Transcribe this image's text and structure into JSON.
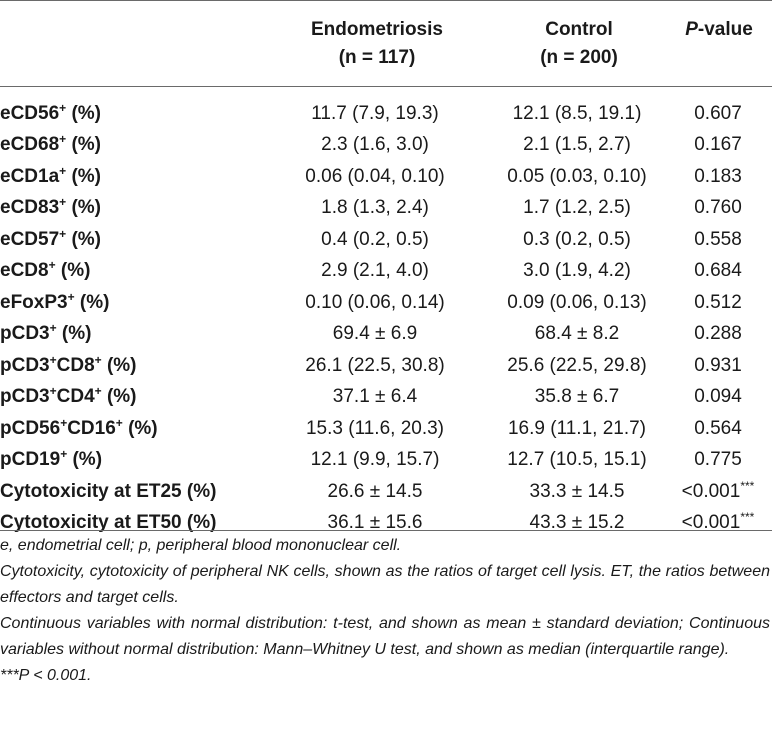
{
  "header": {
    "endometriosis": "Endometriosis",
    "endometriosis_n": "(n = 117)",
    "control": "Control",
    "control_n": "(n = 200)",
    "pvalue_italic": "P",
    "pvalue_rest": "-value"
  },
  "rows": [
    {
      "pre": "eCD56",
      "s1": "+",
      "mid": "",
      "s2": "",
      "post": " (%)",
      "endo": "11.7 (7.9, 19.3)",
      "ctrl": "12.1 (8.5, 19.1)",
      "p": "0.607",
      "p_sup": ""
    },
    {
      "pre": "eCD68",
      "s1": "+",
      "mid": "",
      "s2": "",
      "post": " (%)",
      "endo": "2.3 (1.6, 3.0)",
      "ctrl": "2.1 (1.5, 2.7)",
      "p": "0.167",
      "p_sup": ""
    },
    {
      "pre": "eCD1a",
      "s1": "+",
      "mid": "",
      "s2": "",
      "post": " (%)",
      "endo": "0.06 (0.04, 0.10)",
      "ctrl": "0.05 (0.03, 0.10)",
      "p": "0.183",
      "p_sup": ""
    },
    {
      "pre": "eCD83",
      "s1": "+",
      "mid": "",
      "s2": "",
      "post": " (%)",
      "endo": "1.8 (1.3, 2.4)",
      "ctrl": "1.7 (1.2, 2.5)",
      "p": "0.760",
      "p_sup": ""
    },
    {
      "pre": "eCD57",
      "s1": "+",
      "mid": "",
      "s2": "",
      "post": " (%)",
      "endo": "0.4 (0.2, 0.5)",
      "ctrl": "0.3 (0.2, 0.5)",
      "p": "0.558",
      "p_sup": ""
    },
    {
      "pre": "eCD8",
      "s1": "+",
      "mid": "",
      "s2": "",
      "post": " (%)",
      "endo": "2.9 (2.1, 4.0)",
      "ctrl": "3.0 (1.9, 4.2)",
      "p": "0.684",
      "p_sup": ""
    },
    {
      "pre": "eFoxP3",
      "s1": "+",
      "mid": "",
      "s2": "",
      "post": " (%)",
      "endo": "0.10 (0.06, 0.14)",
      "ctrl": "0.09 (0.06, 0.13)",
      "p": "0.512",
      "p_sup": ""
    },
    {
      "pre": "pCD3",
      "s1": "+",
      "mid": "",
      "s2": "",
      "post": " (%)",
      "endo": "69.4 ± 6.9",
      "ctrl": "68.4 ± 8.2",
      "p": "0.288",
      "p_sup": ""
    },
    {
      "pre": "pCD3",
      "s1": "+",
      "mid": "CD8",
      "s2": "+",
      "post": " (%)",
      "endo": "26.1 (22.5, 30.8)",
      "ctrl": "25.6 (22.5, 29.8)",
      "p": "0.931",
      "p_sup": ""
    },
    {
      "pre": "pCD3",
      "s1": "+",
      "mid": "CD4",
      "s2": "+",
      "post": " (%)",
      "endo": "37.1 ± 6.4",
      "ctrl": "35.8 ± 6.7",
      "p": "0.094",
      "p_sup": ""
    },
    {
      "pre": "pCD56",
      "s1": "+",
      "mid": "CD16",
      "s2": "+",
      "post": " (%)",
      "endo": "15.3 (11.6, 20.3)",
      "ctrl": "16.9 (11.1, 21.7)",
      "p": "0.564",
      "p_sup": ""
    },
    {
      "pre": "pCD19",
      "s1": "+",
      "mid": "",
      "s2": "",
      "post": " (%)",
      "endo": "12.1 (9.9, 15.7)",
      "ctrl": "12.7 (10.5, 15.1)",
      "p": "0.775",
      "p_sup": ""
    },
    {
      "pre": "Cytotoxicity at ET25 (%)",
      "s1": "",
      "mid": "",
      "s2": "",
      "post": "",
      "endo": "26.6 ± 14.5",
      "ctrl": "33.3 ± 14.5",
      "p": "<0.001",
      "p_sup": "***"
    },
    {
      "pre": "Cytotoxicity at ET50 (%)",
      "s1": "",
      "mid": "",
      "s2": "",
      "post": "",
      "endo": "36.1 ± 15.6",
      "ctrl": "43.3 ± 15.2",
      "p": "<0.001",
      "p_sup": "***"
    }
  ],
  "notes": {
    "abbrev": "e, endometrial cell; p, peripheral blood mononuclear cell.",
    "cytotoxicity": "Cytotoxicity, cytotoxicity of peripheral NK cells, shown as the ratios of target cell lysis. ET, the ratios between effectors and target cells.",
    "methods": "Continuous variables with normal distribution: t-test, and shown as mean ± standard deviation; Continuous variables without normal distribution: Mann–Whitney U test, and shown as median (interquartile range).",
    "sig": "***P < 0.001."
  }
}
